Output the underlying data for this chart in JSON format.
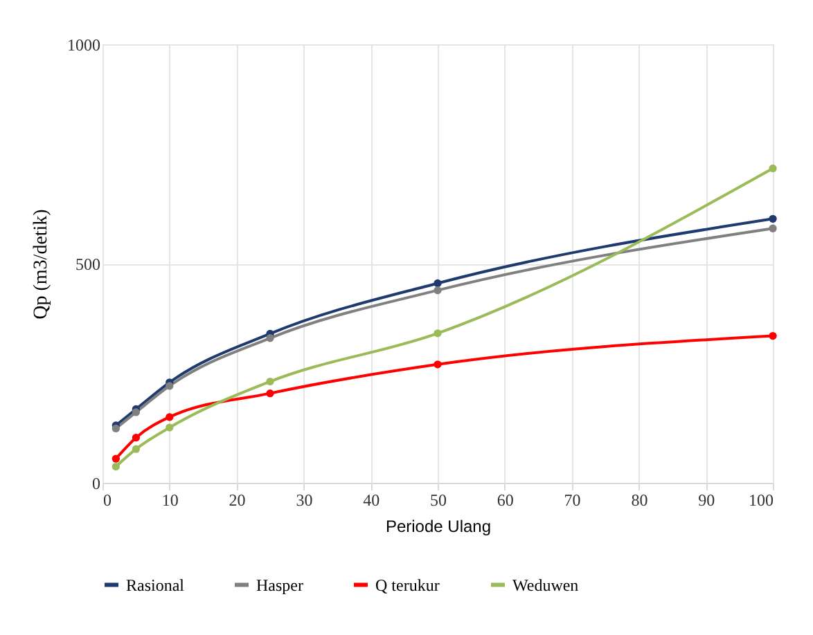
{
  "chart_data": {
    "type": "line",
    "xlabel": "Periode Ulang",
    "ylabel": "Qp (m3/detik)",
    "x": [
      2,
      5,
      10,
      25,
      50,
      100
    ],
    "series": [
      {
        "name": "Rasional",
        "color": "#1f3a6e",
        "values": [
          131,
          168,
          229,
          340,
          455,
          602
        ]
      },
      {
        "name": "Hasper",
        "color": "#808080",
        "values": [
          124,
          161,
          221,
          330,
          439,
          580
        ]
      },
      {
        "name": "Q terukur",
        "color": "#ff0000",
        "values": [
          55,
          103,
          150,
          204,
          270,
          335
        ]
      },
      {
        "name": "Weduwen",
        "color": "#9bbb59",
        "values": [
          37,
          77,
          126,
          231,
          341,
          717
        ]
      }
    ],
    "xlim": [
      0,
      100
    ],
    "xticks": [
      0,
      10,
      20,
      30,
      40,
      50,
      60,
      70,
      80,
      90,
      100
    ],
    "ylim": [
      0,
      1000
    ],
    "yticks": [
      0,
      500,
      1000
    ],
    "grid": true,
    "legend": "bottom",
    "marker": "circle",
    "line_style": "solid"
  }
}
